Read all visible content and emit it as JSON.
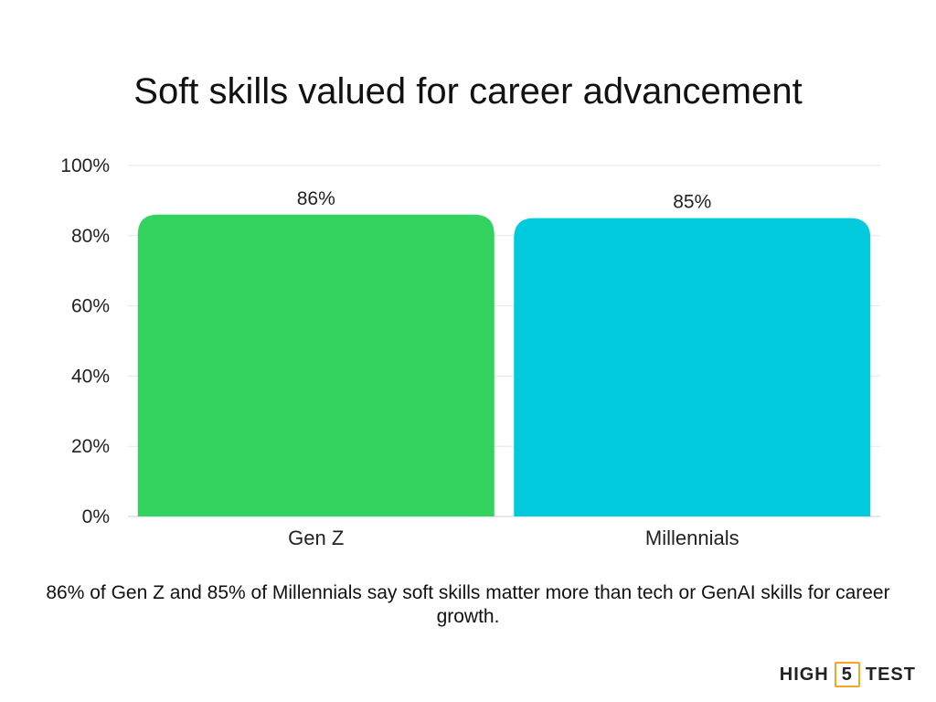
{
  "chart_data": {
    "type": "bar",
    "title": "Soft skills valued for career advancement",
    "categories": [
      "Gen Z",
      "Millennials"
    ],
    "values": [
      86,
      85
    ],
    "value_labels": [
      "86%",
      "85%"
    ],
    "colors": [
      "#32d35f",
      "#00cadc"
    ],
    "ylim": [
      0,
      100
    ],
    "yticks": [
      0,
      20,
      40,
      60,
      80,
      100
    ],
    "ytick_labels": [
      "0%",
      "20%",
      "40%",
      "60%",
      "80%",
      "100%"
    ],
    "grid": true,
    "legend": "none"
  },
  "caption": "86% of Gen Z and 85% of Millennials say soft skills matter more than tech or GenAI skills for career growth.",
  "logo": {
    "left": "HIGH",
    "mid": "5",
    "right": "TEST",
    "accent": "#f5a623"
  }
}
